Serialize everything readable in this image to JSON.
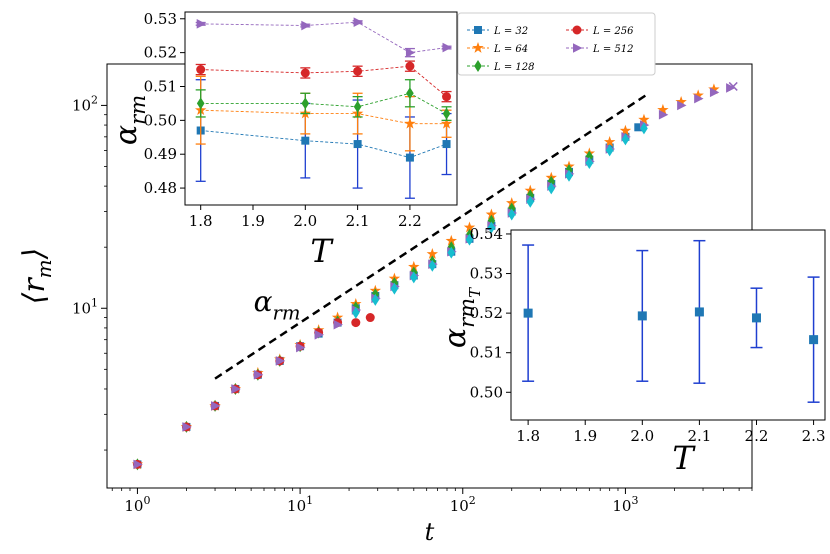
{
  "chart_data": [
    {
      "id": "main",
      "type": "scatter",
      "title": "",
      "xlabel": "t",
      "ylabel": "⟨r_m⟩",
      "xscale": "log",
      "yscale": "log",
      "xlim": [
        0.65,
        6000
      ],
      "ylim": [
        1.3,
        160
      ],
      "xticks": [
        {
          "value": 1,
          "base": "10",
          "exp": "0"
        },
        {
          "value": 10,
          "base": "10",
          "exp": "1"
        },
        {
          "value": 100,
          "base": "10",
          "exp": "2"
        },
        {
          "value": 1000,
          "base": "10",
          "exp": "3"
        }
      ],
      "yticks": [
        {
          "value": 10,
          "base": "10",
          "exp": "1"
        },
        {
          "value": 100,
          "base": "10",
          "exp": "2"
        }
      ],
      "series": [
        {
          "name": "L = 32",
          "color": "#1f77b4",
          "marker": "square",
          "x": [
            1,
            2,
            3,
            4,
            5.5,
            7.5,
            10,
            13,
            17,
            22,
            29,
            38,
            50,
            65,
            85,
            110,
            150,
            200,
            260,
            350,
            450,
            600,
            800,
            1000,
            1200
          ],
          "y": [
            1.7,
            2.6,
            3.3,
            4.0,
            4.7,
            5.5,
            6.5,
            7.5,
            8.5,
            10.0,
            11.5,
            13.0,
            14.5,
            16.5,
            19.0,
            22.0,
            25.5,
            30.0,
            35.0,
            41.0,
            47.0,
            54.0,
            62.0,
            70.0,
            78.0
          ]
        },
        {
          "name": "L = 64",
          "color": "#ff7f0e",
          "marker": "star",
          "x": [
            1,
            2,
            3,
            4,
            5.5,
            7.5,
            10,
            13,
            17,
            22,
            29,
            38,
            50,
            65,
            85,
            110,
            150,
            200,
            260,
            350,
            450,
            600,
            800,
            1000,
            1300,
            1700,
            2200,
            2800,
            3500
          ],
          "y": [
            1.7,
            2.6,
            3.3,
            4.0,
            4.8,
            5.6,
            6.6,
            7.8,
            9.0,
            10.5,
            12.2,
            14.0,
            16.0,
            18.5,
            21.5,
            25.0,
            29.0,
            33.0,
            38.0,
            44.0,
            50.0,
            58.0,
            66.0,
            75.0,
            85.0,
            95.0,
            104.0,
            112.0,
            120.0
          ]
        },
        {
          "name": "L = 128",
          "color": "#2ca02c",
          "marker": "diamond",
          "x": [
            1,
            2,
            3,
            4,
            5.5,
            7.5,
            10,
            13,
            17,
            22,
            29,
            38,
            50,
            65,
            85,
            110,
            150,
            200,
            260,
            350,
            450,
            600
          ],
          "y": [
            1.7,
            2.6,
            3.3,
            4.0,
            4.7,
            5.5,
            6.5,
            7.6,
            8.6,
            10.1,
            11.7,
            13.3,
            15.0,
            17.0,
            20.0,
            23.0,
            27.0,
            31.0,
            36.0,
            42.0,
            48.0,
            56.0
          ]
        },
        {
          "name": "L = 256",
          "color": "#d62728",
          "marker": "circle",
          "x": [
            1,
            2,
            3,
            4,
            5.5,
            7.5,
            10,
            13,
            17,
            22,
            27
          ],
          "y": [
            1.7,
            2.6,
            3.3,
            4.0,
            4.7,
            5.5,
            6.5,
            7.6,
            8.5,
            8.5,
            9.0
          ]
        },
        {
          "name": "L = 512",
          "color": "#9467bd",
          "marker": "triangle-right",
          "x": [
            1,
            2,
            3,
            4,
            5.5,
            7.5,
            10,
            13,
            17,
            22,
            29,
            38,
            50,
            65,
            85,
            110,
            150,
            200,
            260,
            350,
            450,
            600,
            800,
            1000,
            1300,
            1700,
            2200,
            2800,
            3500,
            4400
          ],
          "y": [
            1.7,
            2.6,
            3.3,
            4.0,
            4.7,
            5.5,
            6.4,
            7.4,
            8.3,
            9.8,
            11.2,
            12.8,
            14.5,
            16.5,
            19.0,
            22.0,
            25.5,
            29.5,
            34.5,
            40.0,
            46.0,
            53.0,
            61.0,
            70.0,
            80.0,
            90.0,
            100.0,
            108.0,
            116.0,
            122.0
          ]
        },
        {
          "name": "",
          "color": "#17becf",
          "marker": "diamond",
          "x": [
            22,
            29,
            38,
            50,
            65,
            85,
            110,
            150,
            200,
            260,
            350,
            450,
            600,
            800,
            1000,
            1300
          ],
          "y": [
            9.5,
            11.0,
            12.5,
            14.2,
            16.2,
            18.8,
            21.8,
            25.0,
            29.0,
            33.5,
            39.0,
            45.0,
            52.0,
            60.0,
            68.0,
            77.0
          ]
        }
      ],
      "guide_line": {
        "label_base": "α",
        "label_sub": "rm",
        "x": [
          3,
          1400
        ],
        "y": [
          4.5,
          115
        ],
        "style": "dashed",
        "color": "#000000"
      }
    },
    {
      "id": "inset_top",
      "type": "line",
      "xlabel": "T",
      "ylabel_base": "α",
      "ylabel_sub": "rm",
      "xlim": [
        1.77,
        2.29
      ],
      "ylim": [
        0.475,
        0.532
      ],
      "xticks": [
        1.8,
        1.9,
        2.0,
        2.1,
        2.2
      ],
      "xtick_labels": [
        "1.8",
        "1.9",
        "2.0",
        "2.1",
        "2.2"
      ],
      "yticks": [
        0.48,
        0.49,
        0.5,
        0.51,
        0.52,
        0.53
      ],
      "ytick_labels": [
        "0.48",
        "0.49",
        "0.50",
        "0.51",
        "0.52",
        "0.53"
      ],
      "x": [
        1.8,
        2.0,
        2.1,
        2.2,
        2.27
      ],
      "series": [
        {
          "name": "L = 32",
          "color": "#1f77b4",
          "marker": "square",
          "ecolor": "#1f3fd0",
          "values": [
            0.497,
            0.494,
            0.493,
            0.489,
            0.493
          ],
          "errors": [
            0.015,
            0.011,
            0.013,
            0.012,
            0.009
          ]
        },
        {
          "name": "L = 64",
          "color": "#ff7f0e",
          "marker": "star",
          "ecolor": "#ff7f0e",
          "values": [
            0.503,
            0.502,
            0.502,
            0.499,
            0.499
          ],
          "errors": [
            0.01,
            0.006,
            0.006,
            0.008,
            0.004
          ]
        },
        {
          "name": "L = 128",
          "color": "#2ca02c",
          "marker": "diamond",
          "ecolor": "#2ca02c",
          "values": [
            0.505,
            0.505,
            0.504,
            0.508,
            0.502
          ],
          "errors": [
            0.004,
            0.003,
            0.003,
            0.004,
            0.002
          ]
        },
        {
          "name": "L = 256",
          "color": "#d62728",
          "marker": "circle",
          "ecolor": "#d62728",
          "values": [
            0.515,
            0.514,
            0.5145,
            0.516,
            0.507
          ],
          "errors": [
            0.0015,
            0.0015,
            0.0015,
            0.0015,
            0.0015
          ]
        },
        {
          "name": "L = 512",
          "color": "#9467bd",
          "marker": "triangle-right",
          "ecolor": "#9467bd",
          "values": [
            0.5285,
            0.528,
            0.529,
            0.52,
            0.5215
          ],
          "errors": [
            0.0004,
            0.0004,
            0.0004,
            0.0012,
            0.0004
          ]
        }
      ],
      "legend": {
        "placement": "top-right",
        "columns": 2
      }
    },
    {
      "id": "inset_right",
      "type": "scatter",
      "xlabel": "T",
      "ylabel_base": "α",
      "ylabel_sub": "rm",
      "ylabel_subsub": "T",
      "xlim": [
        1.77,
        2.32
      ],
      "ylim": [
        0.493,
        0.541
      ],
      "xticks": [
        1.8,
        1.9,
        2.0,
        2.1,
        2.2,
        2.3
      ],
      "xtick_labels": [
        "1.8",
        "1.9",
        "2.0",
        "2.1",
        "2.2",
        "2.3"
      ],
      "yticks": [
        0.5,
        0.51,
        0.52,
        0.53,
        0.54
      ],
      "ytick_labels": [
        "0.50",
        "0.51",
        "0.52",
        "0.53",
        "0.54"
      ],
      "x": [
        1.8,
        2.0,
        2.1,
        2.2,
        2.3
      ],
      "values": [
        0.52,
        0.5193,
        0.5203,
        0.5188,
        0.5133
      ],
      "errors": [
        0.0172,
        0.0165,
        0.018,
        0.0075,
        0.0158
      ],
      "color": "#1f77b4",
      "ecolor": "#1f3fd0"
    }
  ]
}
